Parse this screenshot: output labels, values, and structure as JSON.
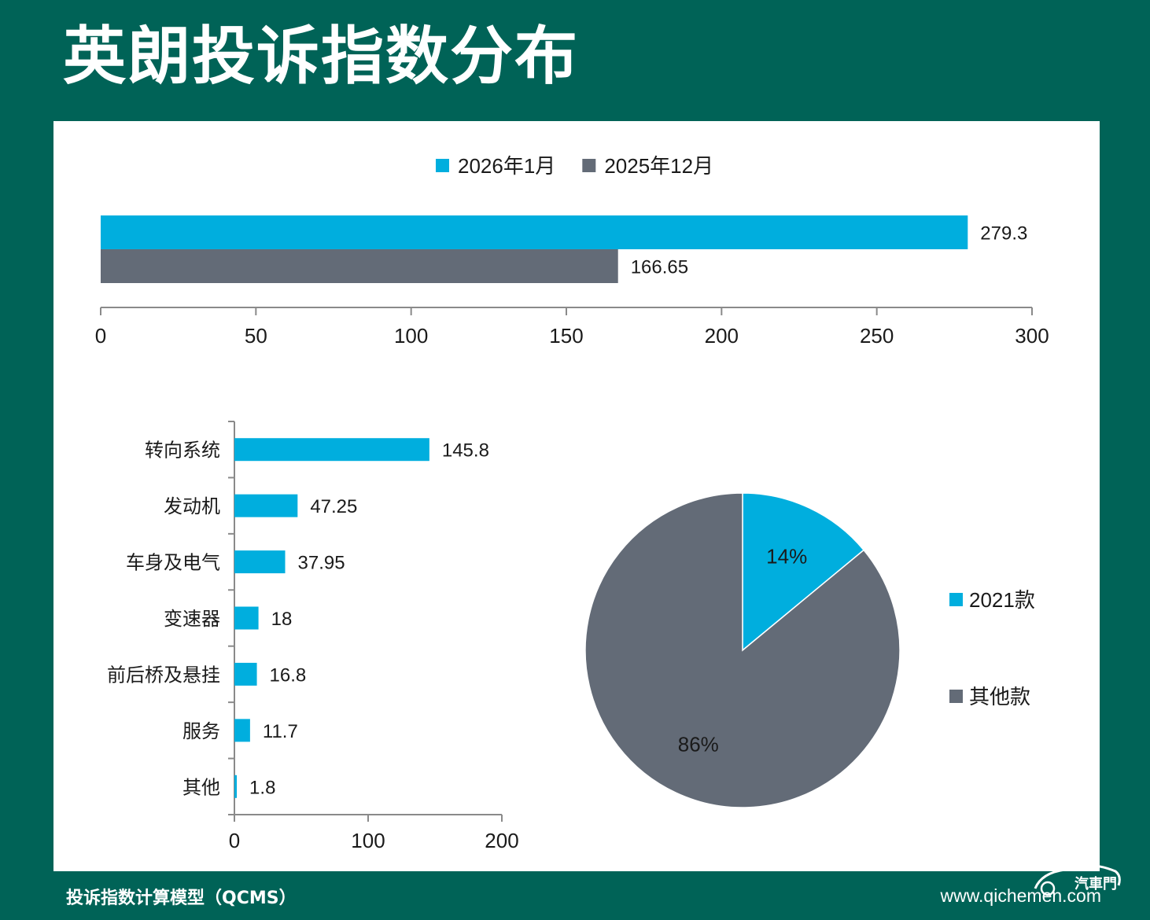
{
  "page": {
    "title": "英朗投诉指数分布",
    "footer_left": "投诉指数计算模型（QCMS）",
    "footer_right": "www.qichemen.com",
    "logo_text": "汽車門"
  },
  "colors": {
    "background": "#006357",
    "panel": "#ffffff",
    "series_blue": "#00AEDE",
    "series_gray": "#636B77",
    "axis": "#8a8a8a"
  },
  "chart_data": [
    {
      "type": "bar",
      "orientation": "horizontal",
      "categories": [
        ""
      ],
      "series": [
        {
          "name": "2026年1月",
          "values": [
            279.3
          ],
          "labels": [
            "279.3"
          ],
          "color": "#00AEDE"
        },
        {
          "name": "2025年12月",
          "values": [
            166.65
          ],
          "labels": [
            "166.65"
          ],
          "color": "#636B77"
        }
      ],
      "xlim": [
        0,
        300
      ],
      "xticks": [
        0,
        50,
        100,
        150,
        200,
        250,
        300
      ],
      "xtick_labels": [
        "0",
        "50",
        "100",
        "150",
        "200",
        "250",
        "300"
      ],
      "legend": "top-center"
    },
    {
      "type": "bar",
      "orientation": "horizontal",
      "categories": [
        "转向系统",
        "发动机",
        "车身及电气",
        "变速器",
        "前后桥及悬挂",
        "服务",
        "其他"
      ],
      "values": [
        145.8,
        47.25,
        37.95,
        18,
        16.8,
        11.7,
        1.8
      ],
      "labels": [
        "145.8",
        "47.25",
        "37.95",
        "18",
        "16.8",
        "11.7",
        "1.8"
      ],
      "xlim": [
        0,
        200
      ],
      "xticks": [
        0,
        100,
        200
      ],
      "xtick_labels": [
        "0",
        "100",
        "200"
      ],
      "color": "#00AEDE"
    },
    {
      "type": "pie",
      "slices": [
        {
          "label": "2021款",
          "value": 14,
          "text": "14%",
          "color": "#00AEDE"
        },
        {
          "label": "其他款",
          "value": 86,
          "text": "86%",
          "color": "#636B77"
        }
      ],
      "legend": "right"
    }
  ]
}
